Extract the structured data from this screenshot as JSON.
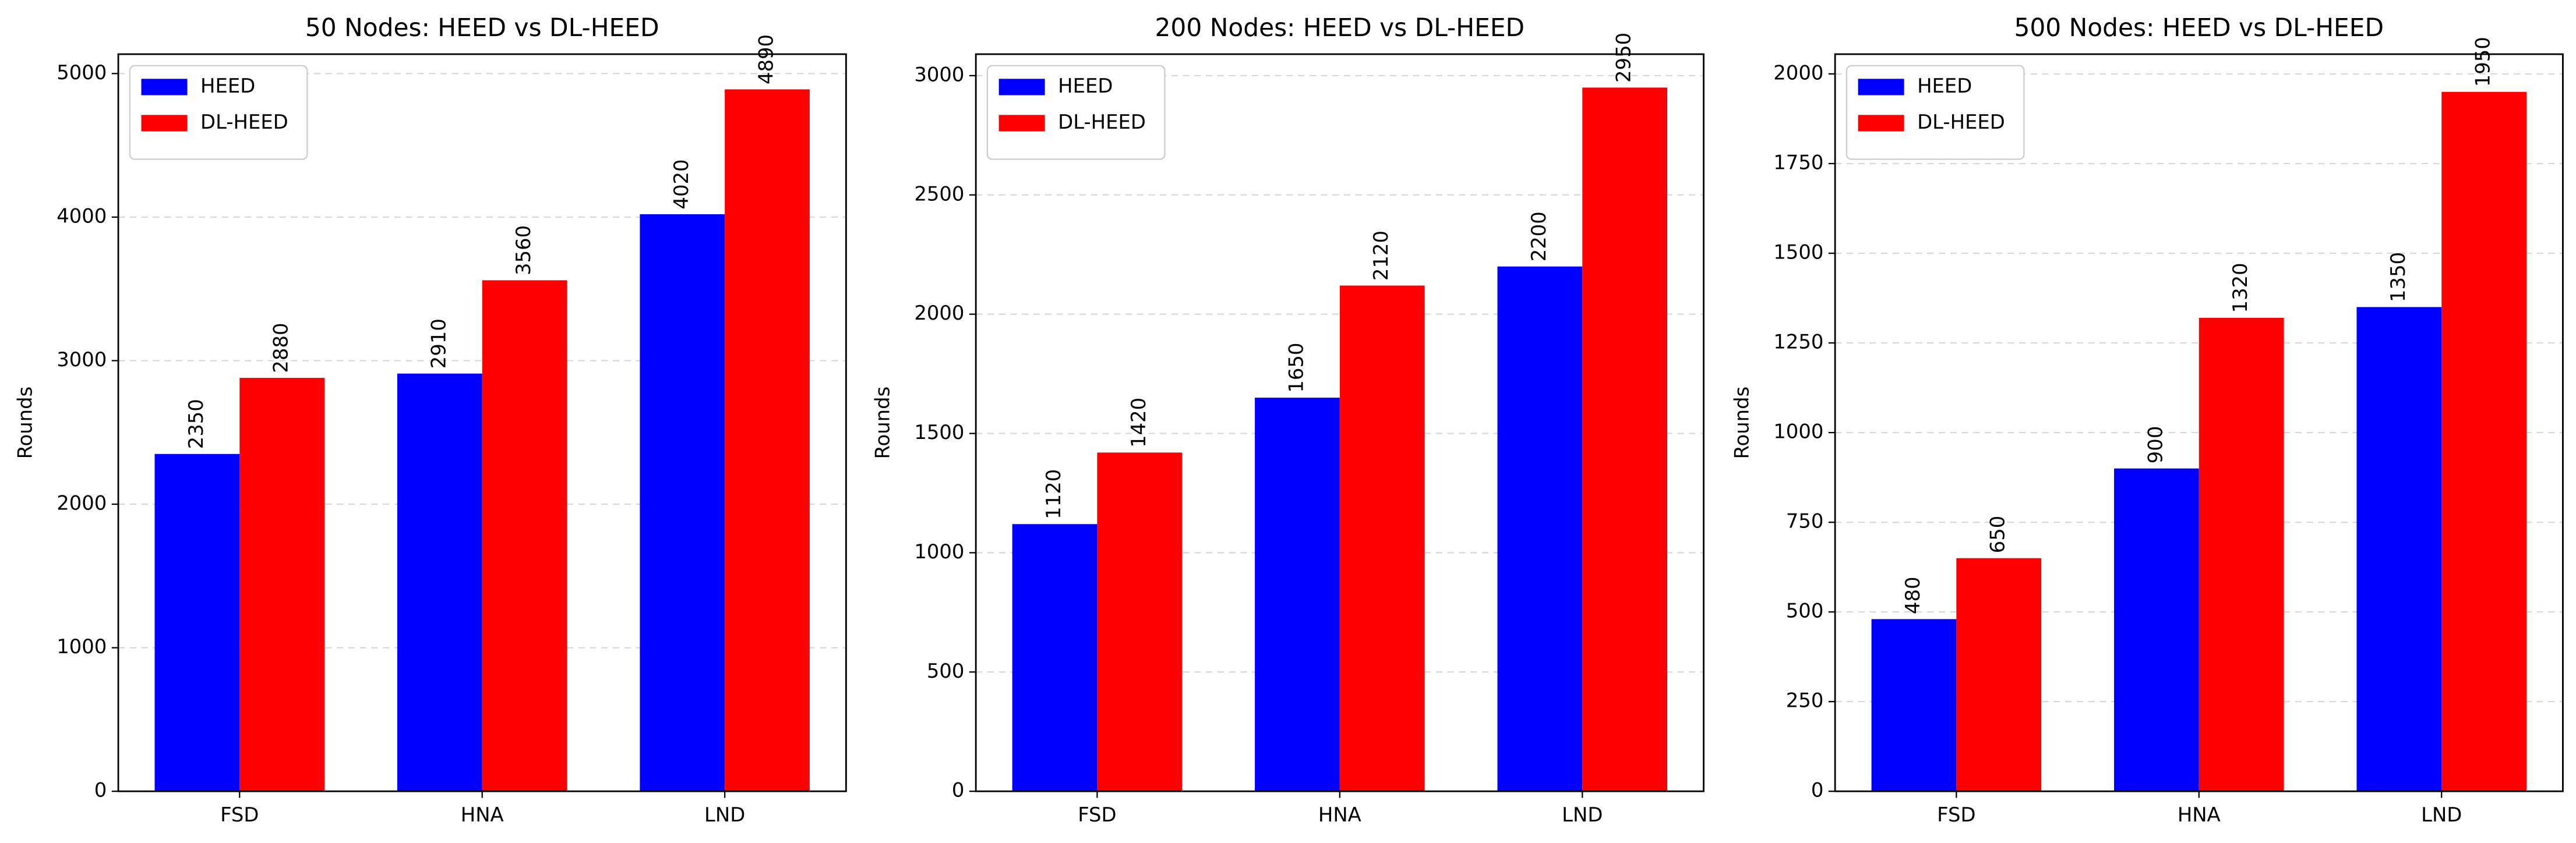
{
  "chart_data": [
    {
      "type": "bar",
      "title": "50 Nodes: HEED vs DL-HEED",
      "y_label": "Rounds",
      "categories": [
        "FSD",
        "HNA",
        "LND"
      ],
      "series": [
        {
          "name": "HEED",
          "color": "#0000ff",
          "values": [
            2350,
            2910,
            4020
          ]
        },
        {
          "name": "DL-HEED",
          "color": "#ff0000",
          "values": [
            2880,
            3560,
            4890
          ]
        }
      ],
      "ylim": [
        0,
        5135
      ],
      "yticks": [
        0,
        1000,
        2000,
        3000,
        4000,
        5000
      ],
      "grid": true,
      "legend": "upper left"
    },
    {
      "type": "bar",
      "title": "200 Nodes: HEED vs DL-HEED",
      "y_label": "Rounds",
      "categories": [
        "FSD",
        "HNA",
        "LND"
      ],
      "series": [
        {
          "name": "HEED",
          "color": "#0000ff",
          "values": [
            1120,
            1650,
            2200
          ]
        },
        {
          "name": "DL-HEED",
          "color": "#ff0000",
          "values": [
            1420,
            2120,
            2950
          ]
        }
      ],
      "ylim": [
        0,
        3090
      ],
      "yticks": [
        0,
        500,
        1000,
        1500,
        2000,
        2500,
        3000
      ],
      "grid": true,
      "legend": "upper left"
    },
    {
      "type": "bar",
      "title": "500 Nodes: HEED vs DL-HEED",
      "y_label": "Rounds",
      "categories": [
        "FSD",
        "HNA",
        "LND"
      ],
      "series": [
        {
          "name": "HEED",
          "color": "#0000ff",
          "values": [
            480,
            900,
            1350
          ]
        },
        {
          "name": "DL-HEED",
          "color": "#ff0000",
          "values": [
            650,
            1320,
            1950
          ]
        }
      ],
      "ylim": [
        0,
        2055
      ],
      "yticks": [
        0,
        250,
        500,
        750,
        1000,
        1250,
        1500,
        1750,
        2000
      ],
      "grid": true,
      "legend": "upper left"
    }
  ]
}
